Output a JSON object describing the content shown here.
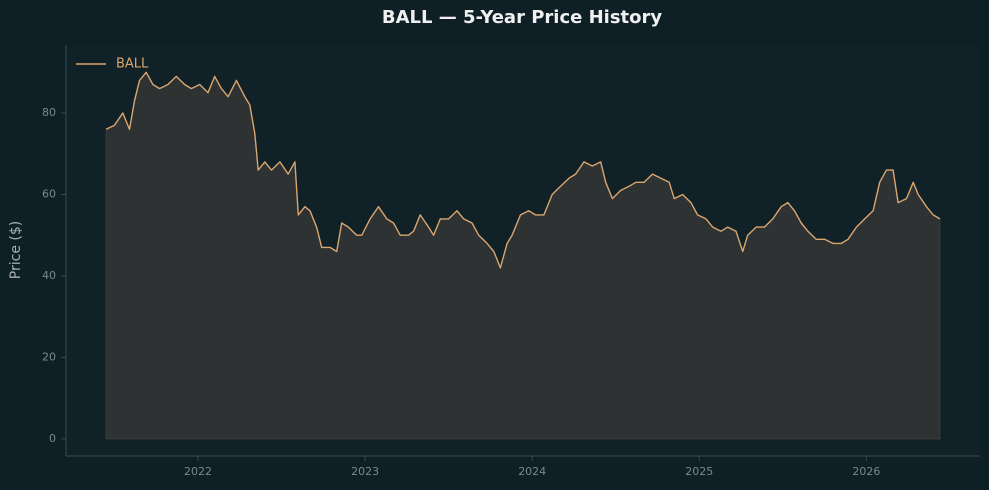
{
  "chart_data": {
    "type": "line",
    "title": "BALL — 5-Year Price History",
    "ylabel": "Price ($)",
    "x": [
      2021.45,
      2021.5,
      2021.55,
      2021.59,
      2021.62,
      2021.65,
      2021.69,
      2021.73,
      2021.77,
      2021.82,
      2021.87,
      2021.92,
      2021.96,
      2022.01,
      2022.06,
      2022.1,
      2022.14,
      2022.18,
      2022.23,
      2022.28,
      2022.31,
      2022.34,
      2022.36,
      2022.4,
      2022.44,
      2022.49,
      2022.54,
      2022.58,
      2022.6,
      2022.64,
      2022.67,
      2022.71,
      2022.74,
      2022.79,
      2022.83,
      2022.86,
      2022.9,
      2022.95,
      2022.98,
      2023.03,
      2023.08,
      2023.13,
      2023.17,
      2023.21,
      2023.26,
      2023.29,
      2023.33,
      2023.38,
      2023.41,
      2023.45,
      2023.5,
      2023.55,
      2023.59,
      2023.64,
      2023.68,
      2023.73,
      2023.77,
      2023.81,
      2023.85,
      2023.88,
      2023.93,
      2023.98,
      2024.02,
      2024.07,
      2024.12,
      2024.17,
      2024.22,
      2024.26,
      2024.31,
      2024.36,
      2024.41,
      2024.44,
      2024.48,
      2024.53,
      2024.58,
      2024.62,
      2024.67,
      2024.72,
      2024.77,
      2024.82,
      2024.85,
      2024.9,
      2024.95,
      2024.99,
      2025.04,
      2025.08,
      2025.13,
      2025.17,
      2025.22,
      2025.26,
      2025.29,
      2025.34,
      2025.39,
      2025.44,
      2025.49,
      2025.53,
      2025.57,
      2025.61,
      2025.65,
      2025.7,
      2025.75,
      2025.8,
      2025.85,
      2025.89,
      2025.94,
      2025.99,
      2026.04,
      2026.08,
      2026.12,
      2026.16,
      2026.19,
      2026.24,
      2026.28,
      2026.31,
      2026.36,
      2026.4,
      2026.44
    ],
    "series": [
      {
        "name": "BALL",
        "color": "#d9a66e",
        "values": [
          76,
          77,
          80,
          76,
          83,
          88,
          90,
          87,
          86,
          87,
          89,
          87,
          86,
          87,
          85,
          89,
          86,
          84,
          88,
          84,
          82,
          75,
          66,
          68,
          66,
          68,
          65,
          68,
          55,
          57,
          56,
          52,
          47,
          47,
          46,
          53,
          52,
          50,
          50,
          54,
          57,
          54,
          53,
          50,
          50,
          51,
          55,
          52,
          50,
          54,
          54,
          56,
          54,
          53,
          50,
          48,
          46,
          42,
          48,
          50,
          55,
          56,
          55,
          55,
          60,
          62,
          64,
          65,
          68,
          67,
          68,
          63,
          59,
          61,
          62,
          63,
          63,
          65,
          64,
          63,
          59,
          60,
          58,
          55,
          54,
          52,
          51,
          52,
          51,
          46,
          50,
          52,
          52,
          54,
          57,
          58,
          56,
          53,
          51,
          49,
          49,
          48,
          48,
          49,
          52,
          54,
          56,
          63,
          66,
          66,
          58,
          59,
          63,
          60,
          57,
          55,
          54
        ]
      }
    ],
    "xlim": [
      2021.21,
      2026.68
    ],
    "xticks": [
      2022,
      2023,
      2024,
      2025,
      2026
    ],
    "ylim": [
      -4.2,
      96.7
    ],
    "yticks": [
      0,
      20,
      40,
      60,
      80
    ],
    "legend": "upper left"
  }
}
